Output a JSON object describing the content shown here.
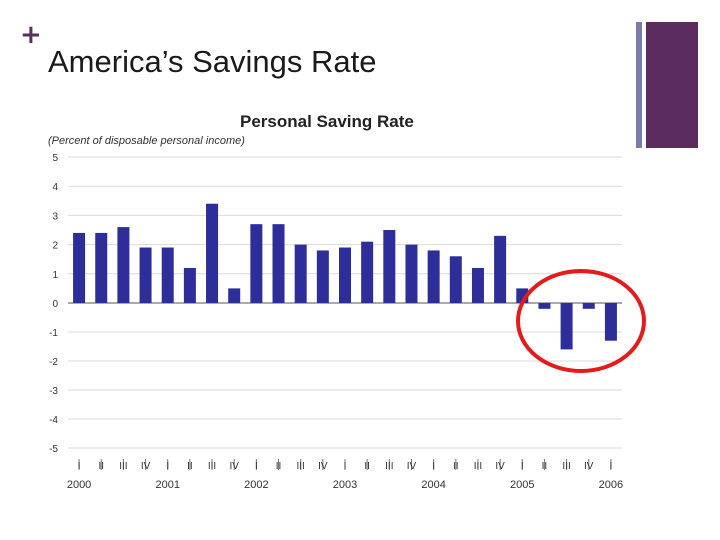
{
  "slide": {
    "plus_symbol": "+",
    "title": "America’s Savings Rate"
  },
  "colors": {
    "accent_purple": "#5b2d5f",
    "accent_thin": "#7b7ba8",
    "bar": "#2e2e9a",
    "highlight_circle": "#e21b1b",
    "grid": "#d9d9d9"
  },
  "chart_data": {
    "type": "bar",
    "title": "Personal Saving Rate",
    "subtitle": "(Percent of disposable personal income)",
    "xlabel": "",
    "ylabel": "",
    "ylim": [
      -5,
      5
    ],
    "yticks": [
      "5",
      "4",
      "3",
      "2",
      "1",
      "0",
      "-1",
      "-2",
      "-3",
      "-4",
      "-5"
    ],
    "grid": true,
    "quarters": [
      "I",
      "II",
      "III",
      "IV",
      "I",
      "II",
      "III",
      "IV",
      "I",
      "II",
      "III",
      "IV",
      "I",
      "II",
      "III",
      "IV",
      "I",
      "II",
      "III",
      "IV",
      "I",
      "II",
      "III",
      "IV",
      "I"
    ],
    "years": [
      "2000",
      "2001",
      "2002",
      "2003",
      "2004",
      "2005",
      "2006"
    ],
    "values": [
      2.4,
      2.4,
      2.6,
      1.9,
      1.9,
      1.2,
      3.4,
      0.5,
      2.7,
      2.7,
      2.0,
      1.8,
      1.9,
      2.1,
      2.5,
      2.0,
      1.8,
      1.6,
      1.2,
      2.3,
      0.5,
      -0.2,
      -1.6,
      -0.2,
      -1.3
    ],
    "annotation": "red circle highlighting negative 2005–2006 values"
  }
}
